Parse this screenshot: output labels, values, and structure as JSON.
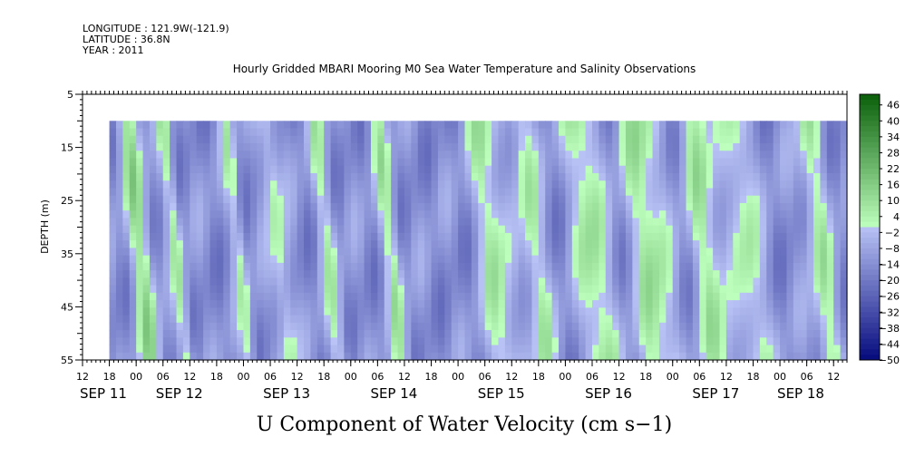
{
  "chart_data": {
    "type": "heatmap",
    "header": {
      "longitude": "LONGITUDE : 121.9W(-121.9)",
      "latitude": "LATITUDE : 36.8N",
      "year": "YEAR : 2011"
    },
    "title": "Hourly Gridded MBARI Mooring M0 Sea Water Temperature and Salinity Observations",
    "xlabel": "U Component of Water Velocity (cm s−1)",
    "ylabel": "DEPTH (m)",
    "x_range_hours": [
      0,
      171
    ],
    "data_start_hour": 6,
    "y_range_depth": [
      5,
      55
    ],
    "y_ticks": [
      5,
      15,
      25,
      35,
      45,
      55
    ],
    "data_depth_range": [
      10,
      55
    ],
    "x_hour_ticks": [
      {
        "h": 0,
        "label": "12"
      },
      {
        "h": 6,
        "label": "18"
      },
      {
        "h": 12,
        "label": "00"
      },
      {
        "h": 18,
        "label": "06"
      },
      {
        "h": 24,
        "label": "12"
      },
      {
        "h": 30,
        "label": "18"
      },
      {
        "h": 36,
        "label": "00"
      },
      {
        "h": 42,
        "label": "06"
      },
      {
        "h": 48,
        "label": "12"
      },
      {
        "h": 54,
        "label": "18"
      },
      {
        "h": 60,
        "label": "00"
      },
      {
        "h": 66,
        "label": "06"
      },
      {
        "h": 72,
        "label": "12"
      },
      {
        "h": 78,
        "label": "18"
      },
      {
        "h": 84,
        "label": "00"
      },
      {
        "h": 90,
        "label": "06"
      },
      {
        "h": 96,
        "label": "12"
      },
      {
        "h": 102,
        "label": "18"
      },
      {
        "h": 108,
        "label": "00"
      },
      {
        "h": 114,
        "label": "06"
      },
      {
        "h": 120,
        "label": "12"
      },
      {
        "h": 126,
        "label": "18"
      },
      {
        "h": 132,
        "label": "00"
      },
      {
        "h": 138,
        "label": "06"
      },
      {
        "h": 144,
        "label": "12"
      },
      {
        "h": 150,
        "label": "18"
      },
      {
        "h": 156,
        "label": "00"
      },
      {
        "h": 162,
        "label": "06"
      },
      {
        "h": 168,
        "label": "12"
      }
    ],
    "day_labels": [
      {
        "h": 0,
        "label": "SEP 11"
      },
      {
        "h": 17,
        "label": "SEP 12"
      },
      {
        "h": 41,
        "label": "SEP 13"
      },
      {
        "h": 65,
        "label": "SEP 14"
      },
      {
        "h": 89,
        "label": "SEP 15"
      },
      {
        "h": 113,
        "label": "SEP 16"
      },
      {
        "h": 137,
        "label": "SEP 17"
      },
      {
        "h": 156,
        "label": "SEP 18"
      }
    ],
    "colorbar": {
      "range": [
        -50,
        50
      ],
      "labels": [
        "46",
        "40",
        "34",
        "28",
        "22",
        "16",
        "10",
        "4",
        "−2",
        "−8",
        "−14",
        "−20",
        "−26",
        "−32",
        "−38",
        "−44",
        "−50"
      ],
      "label_values": [
        46,
        40,
        34,
        28,
        22,
        16,
        10,
        4,
        -2,
        -8,
        -14,
        -20,
        -26,
        -32,
        -38,
        -44,
        -50
      ]
    },
    "green_bands": [
      {
        "hour": 10,
        "width": 2.5,
        "strength": 0.9
      },
      {
        "hour": 18,
        "width": 1.5,
        "strength": 0.7
      },
      {
        "hour": 32,
        "width": 1.5,
        "strength": 0.6
      },
      {
        "hour": 41,
        "width": 2.0,
        "strength": 0.7
      },
      {
        "hour": 52,
        "width": 2.0,
        "strength": 0.6
      },
      {
        "hour": 66,
        "width": 2.0,
        "strength": 0.7
      },
      {
        "hour": 89,
        "width": 3.0,
        "strength": 0.85
      },
      {
        "hour": 98,
        "width": 2.5,
        "strength": 0.8
      },
      {
        "hour": 111,
        "width": 3.5,
        "strength": 0.9
      },
      {
        "hour": 124,
        "width": 4.0,
        "strength": 0.9
      },
      {
        "hour": 137,
        "width": 3.5,
        "strength": 0.8
      },
      {
        "hour": 146,
        "width": 3.0,
        "strength": 0.75
      },
      {
        "hour": 162,
        "width": 3.0,
        "strength": 0.7
      }
    ]
  }
}
